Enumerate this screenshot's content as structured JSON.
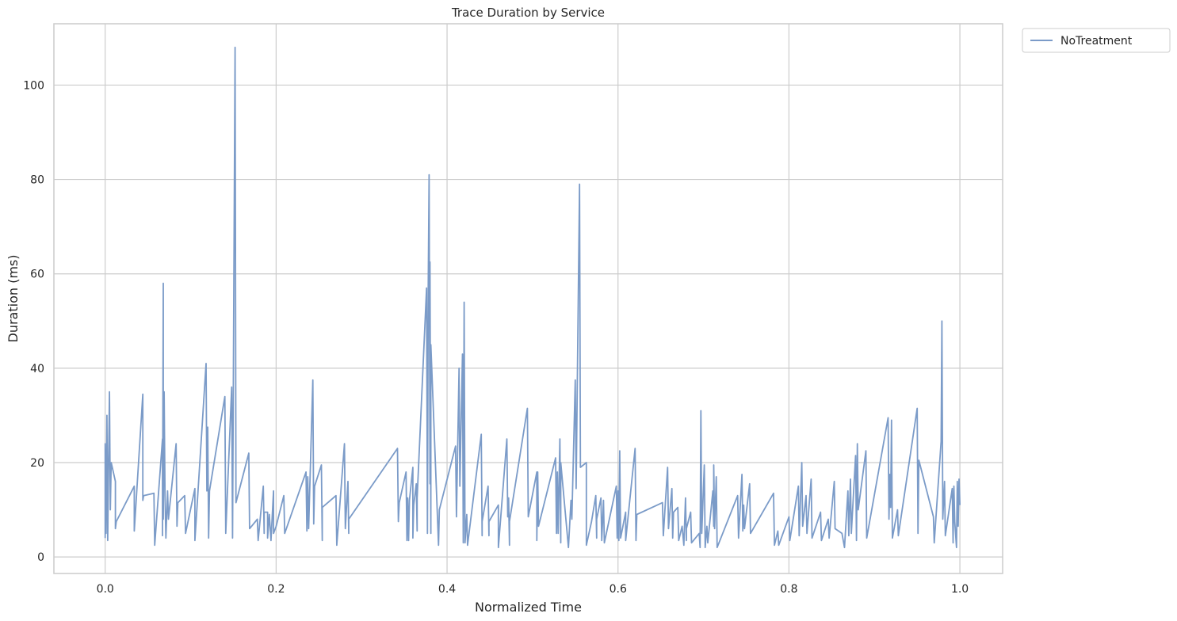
{
  "chart_data": {
    "type": "line",
    "title": "Trace Duration by Service",
    "xlabel": "Normalized Time",
    "ylabel": "Duration (ms)",
    "xlim": [
      -0.06,
      1.05
    ],
    "ylim": [
      -3.5,
      113
    ],
    "x_ticks": [
      0.0,
      0.2,
      0.4,
      0.6,
      0.8,
      1.0
    ],
    "x_tick_labels": [
      "0.0",
      "0.2",
      "0.4",
      "0.6",
      "0.8",
      "1.0"
    ],
    "y_ticks": [
      0,
      20,
      40,
      60,
      80,
      100
    ],
    "y_tick_labels": [
      "0",
      "20",
      "40",
      "60",
      "80",
      "100"
    ],
    "grid": true,
    "legend_position": "upper-right-outside",
    "colors": {
      "series": "#7b9bc8",
      "grid": "#cccccc",
      "text": "#262626",
      "background": "#ffffff"
    },
    "series": [
      {
        "name": "NoTreatment",
        "points": [
          [
            0.0,
            4
          ],
          [
            0.0,
            24
          ],
          [
            0.001,
            5
          ],
          [
            0.002,
            30
          ],
          [
            0.003,
            3.5
          ],
          [
            0.004,
            20
          ],
          [
            0.005,
            35
          ],
          [
            0.006,
            10
          ],
          [
            0.007,
            20
          ],
          [
            0.012,
            16
          ],
          [
            0.012,
            6
          ],
          [
            0.013,
            7.5
          ],
          [
            0.034,
            15
          ],
          [
            0.034,
            5.5
          ],
          [
            0.044,
            34.5
          ],
          [
            0.044,
            12
          ],
          [
            0.045,
            13
          ],
          [
            0.057,
            13.5
          ],
          [
            0.058,
            2.5
          ],
          [
            0.067,
            25
          ],
          [
            0.067,
            4.5
          ],
          [
            0.068,
            58
          ],
          [
            0.068,
            8
          ],
          [
            0.069,
            35
          ],
          [
            0.07,
            13
          ],
          [
            0.071,
            4
          ],
          [
            0.073,
            14
          ],
          [
            0.074,
            8
          ],
          [
            0.083,
            24
          ],
          [
            0.084,
            6.5
          ],
          [
            0.085,
            11.5
          ],
          [
            0.093,
            13
          ],
          [
            0.094,
            5
          ],
          [
            0.105,
            14.5
          ],
          [
            0.105,
            3.5
          ],
          [
            0.118,
            41
          ],
          [
            0.119,
            14
          ],
          [
            0.12,
            27.5
          ],
          [
            0.121,
            4
          ],
          [
            0.122,
            14
          ],
          [
            0.14,
            34
          ],
          [
            0.141,
            5
          ],
          [
            0.148,
            36
          ],
          [
            0.149,
            4
          ],
          [
            0.152,
            108
          ],
          [
            0.153,
            11.5
          ],
          [
            0.168,
            22
          ],
          [
            0.169,
            6
          ],
          [
            0.178,
            8
          ],
          [
            0.179,
            3.5
          ],
          [
            0.185,
            15
          ],
          [
            0.186,
            5
          ],
          [
            0.186,
            9.5
          ],
          [
            0.19,
            9.5
          ],
          [
            0.19,
            4
          ],
          [
            0.192,
            9
          ],
          [
            0.194,
            3.5
          ],
          [
            0.197,
            14
          ],
          [
            0.197,
            5
          ],
          [
            0.2,
            6.5
          ],
          [
            0.209,
            13
          ],
          [
            0.21,
            5
          ],
          [
            0.235,
            18
          ],
          [
            0.236,
            5.5
          ],
          [
            0.237,
            17
          ],
          [
            0.238,
            6
          ],
          [
            0.243,
            37.5
          ],
          [
            0.244,
            7
          ],
          [
            0.245,
            15
          ],
          [
            0.253,
            19.5
          ],
          [
            0.254,
            3.5
          ],
          [
            0.254,
            10.5
          ],
          [
            0.27,
            13
          ],
          [
            0.271,
            2.5
          ],
          [
            0.28,
            24
          ],
          [
            0.281,
            6
          ],
          [
            0.284,
            16
          ],
          [
            0.285,
            5
          ],
          [
            0.285,
            8
          ],
          [
            0.342,
            23
          ],
          [
            0.343,
            7.5
          ],
          [
            0.344,
            11.5
          ],
          [
            0.352,
            18
          ],
          [
            0.353,
            3.5
          ],
          [
            0.354,
            12.5
          ],
          [
            0.355,
            3.5
          ],
          [
            0.356,
            12
          ],
          [
            0.36,
            19
          ],
          [
            0.36,
            4
          ],
          [
            0.361,
            11
          ],
          [
            0.364,
            15.5
          ],
          [
            0.365,
            5.5
          ],
          [
            0.365,
            12.5
          ],
          [
            0.376,
            57
          ],
          [
            0.377,
            5
          ],
          [
            0.378,
            57.5
          ],
          [
            0.379,
            81
          ],
          [
            0.38,
            15.5
          ],
          [
            0.38,
            62.5
          ],
          [
            0.381,
            5
          ],
          [
            0.381,
            45
          ],
          [
            0.39,
            2.5
          ],
          [
            0.391,
            10
          ],
          [
            0.41,
            23.5
          ],
          [
            0.411,
            8.5
          ],
          [
            0.414,
            40
          ],
          [
            0.415,
            15
          ],
          [
            0.418,
            43
          ],
          [
            0.419,
            3
          ],
          [
            0.42,
            54
          ],
          [
            0.421,
            3
          ],
          [
            0.423,
            9
          ],
          [
            0.424,
            2.5
          ],
          [
            0.44,
            26
          ],
          [
            0.441,
            4.5
          ],
          [
            0.441,
            7.5
          ],
          [
            0.448,
            15
          ],
          [
            0.449,
            4.5
          ],
          [
            0.449,
            7.5
          ],
          [
            0.46,
            11
          ],
          [
            0.46,
            2
          ],
          [
            0.47,
            25
          ],
          [
            0.471,
            8.5
          ],
          [
            0.472,
            12.5
          ],
          [
            0.473,
            2.5
          ],
          [
            0.473,
            7.5
          ],
          [
            0.494,
            31.5
          ],
          [
            0.495,
            8.5
          ],
          [
            0.505,
            18
          ],
          [
            0.505,
            3.5
          ],
          [
            0.506,
            18
          ],
          [
            0.507,
            6.5
          ],
          [
            0.527,
            21
          ],
          [
            0.528,
            5
          ],
          [
            0.529,
            18
          ],
          [
            0.53,
            5
          ],
          [
            0.532,
            25
          ],
          [
            0.533,
            3
          ],
          [
            0.533,
            20
          ],
          [
            0.542,
            2
          ],
          [
            0.545,
            12
          ],
          [
            0.546,
            8
          ],
          [
            0.55,
            37.5
          ],
          [
            0.551,
            14.5
          ],
          [
            0.555,
            79
          ],
          [
            0.556,
            19
          ],
          [
            0.563,
            20
          ],
          [
            0.563,
            2.5
          ],
          [
            0.569,
            7.5
          ],
          [
            0.574,
            13
          ],
          [
            0.575,
            4
          ],
          [
            0.575,
            8
          ],
          [
            0.58,
            12.5
          ],
          [
            0.581,
            3.5
          ],
          [
            0.583,
            12
          ],
          [
            0.584,
            3
          ],
          [
            0.598,
            15
          ],
          [
            0.599,
            4
          ],
          [
            0.6,
            14
          ],
          [
            0.601,
            3.5
          ],
          [
            0.602,
            22.5
          ],
          [
            0.603,
            4
          ],
          [
            0.609,
            9.5
          ],
          [
            0.609,
            3.5
          ],
          [
            0.62,
            23
          ],
          [
            0.621,
            3.5
          ],
          [
            0.622,
            9
          ],
          [
            0.652,
            11.5
          ],
          [
            0.653,
            4.5
          ],
          [
            0.658,
            19
          ],
          [
            0.659,
            6
          ],
          [
            0.663,
            14.5
          ],
          [
            0.664,
            4
          ],
          [
            0.665,
            9.5
          ],
          [
            0.67,
            10.5
          ],
          [
            0.671,
            3.5
          ],
          [
            0.675,
            6.5
          ],
          [
            0.677,
            2.5
          ],
          [
            0.679,
            12.5
          ],
          [
            0.68,
            3.5
          ],
          [
            0.68,
            6
          ],
          [
            0.685,
            9.5
          ],
          [
            0.686,
            3
          ],
          [
            0.695,
            5
          ],
          [
            0.696,
            2
          ],
          [
            0.697,
            31
          ],
          [
            0.698,
            5
          ],
          [
            0.701,
            19.5
          ],
          [
            0.702,
            2
          ],
          [
            0.704,
            6.5
          ],
          [
            0.705,
            3
          ],
          [
            0.711,
            14
          ],
          [
            0.712,
            6.5
          ],
          [
            0.712,
            19.5
          ],
          [
            0.713,
            6
          ],
          [
            0.715,
            17
          ],
          [
            0.716,
            2
          ],
          [
            0.74,
            13
          ],
          [
            0.741,
            4
          ],
          [
            0.745,
            17.5
          ],
          [
            0.746,
            5.5
          ],
          [
            0.747,
            11
          ],
          [
            0.748,
            6
          ],
          [
            0.754,
            15.5
          ],
          [
            0.755,
            5
          ],
          [
            0.782,
            13.5
          ],
          [
            0.783,
            2.5
          ],
          [
            0.787,
            5.5
          ],
          [
            0.788,
            2.5
          ],
          [
            0.8,
            8.5
          ],
          [
            0.801,
            3.5
          ],
          [
            0.811,
            15
          ],
          [
            0.812,
            4.5
          ],
          [
            0.815,
            20
          ],
          [
            0.816,
            6.5
          ],
          [
            0.82,
            13
          ],
          [
            0.821,
            5
          ],
          [
            0.826,
            16.5
          ],
          [
            0.827,
            4
          ],
          [
            0.837,
            9.5
          ],
          [
            0.838,
            3.5
          ],
          [
            0.846,
            8
          ],
          [
            0.847,
            4
          ],
          [
            0.853,
            16
          ],
          [
            0.854,
            6
          ],
          [
            0.862,
            5
          ],
          [
            0.865,
            2
          ],
          [
            0.869,
            14
          ],
          [
            0.87,
            4.5
          ],
          [
            0.872,
            16.5
          ],
          [
            0.873,
            5
          ],
          [
            0.878,
            21.5
          ],
          [
            0.879,
            3.5
          ],
          [
            0.88,
            24
          ],
          [
            0.881,
            10
          ],
          [
            0.89,
            22.5
          ],
          [
            0.891,
            4
          ],
          [
            0.916,
            29.5
          ],
          [
            0.917,
            8
          ],
          [
            0.918,
            17.5
          ],
          [
            0.919,
            10.5
          ],
          [
            0.92,
            29
          ],
          [
            0.921,
            4
          ],
          [
            0.927,
            10
          ],
          [
            0.928,
            4.5
          ],
          [
            0.95,
            31.5
          ],
          [
            0.951,
            5
          ],
          [
            0.952,
            20.5
          ],
          [
            0.969,
            8.5
          ],
          [
            0.97,
            3
          ],
          [
            0.978,
            24.5
          ],
          [
            0.979,
            50
          ],
          [
            0.98,
            8
          ],
          [
            0.982,
            16
          ],
          [
            0.983,
            4.5
          ],
          [
            0.991,
            14.5
          ],
          [
            0.992,
            3
          ],
          [
            0.993,
            15
          ],
          [
            0.994,
            7.5
          ],
          [
            0.996,
            2
          ],
          [
            0.997,
            16
          ],
          [
            0.998,
            6.5
          ],
          [
            0.999,
            16.5
          ],
          [
            1.0,
            11
          ]
        ]
      }
    ]
  }
}
